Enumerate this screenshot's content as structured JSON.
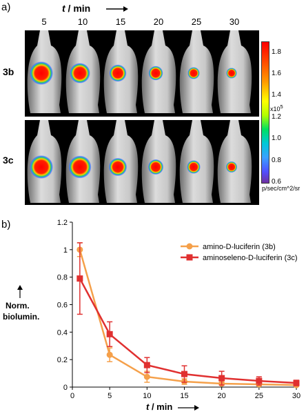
{
  "panel_a": {
    "label": "a)",
    "time_header": "t",
    "time_unit": " / min",
    "times": [
      "5",
      "10",
      "15",
      "20",
      "25",
      "30"
    ],
    "rows": [
      {
        "label": "3b",
        "signal": [
          1.0,
          0.78,
          0.55,
          0.35,
          0.18,
          0.08
        ]
      },
      {
        "label": "3c",
        "signal": [
          1.0,
          0.95,
          0.62,
          0.42,
          0.28,
          0.12
        ]
      }
    ],
    "colorbar": {
      "ticks": [
        "1.8",
        "1.6",
        "1.4",
        "1.2",
        "1.0",
        "0.8",
        "0.6"
      ],
      "exponent": "x10",
      "exponent_power": "5",
      "unit": "p/sec/cm^2/sr",
      "range": [
        0.6,
        1.9
      ]
    }
  },
  "panel_b": {
    "label": "b)",
    "ylabel_line1": "Norm.",
    "ylabel_line2": "biolumin.",
    "xlabel_t": "t",
    "xlabel_unit": " / min"
  },
  "chart_data": {
    "type": "line",
    "xlabel": "t / min",
    "ylabel": "Norm. biolumin.",
    "xlim": [
      0,
      30
    ],
    "ylim": [
      0,
      1.2
    ],
    "xticks": [
      0,
      5,
      10,
      15,
      20,
      25,
      30
    ],
    "yticks": [
      0,
      0.2,
      0.4,
      0.6,
      0.8,
      1,
      1.2
    ],
    "legend_position": "top-right",
    "series": [
      {
        "name": "amino-D-luciferin (3b)",
        "color": "#F5A04A",
        "marker": "circle",
        "x": [
          1,
          5,
          10,
          15,
          20,
          25,
          30
        ],
        "y": [
          1.0,
          0.235,
          0.075,
          0.04,
          0.025,
          0.02,
          0.015
        ],
        "err": [
          0.05,
          0.05,
          0.04,
          0.02,
          0.01,
          0.01,
          0.01
        ]
      },
      {
        "name": "aminoseleno-D-luciferin (3c)",
        "color": "#E03030",
        "marker": "square",
        "x": [
          1,
          5,
          10,
          15,
          20,
          25,
          30
        ],
        "y": [
          0.79,
          0.385,
          0.16,
          0.095,
          0.065,
          0.045,
          0.03
        ],
        "err": [
          0.26,
          0.09,
          0.055,
          0.06,
          0.05,
          0.03,
          0.02
        ]
      }
    ]
  }
}
